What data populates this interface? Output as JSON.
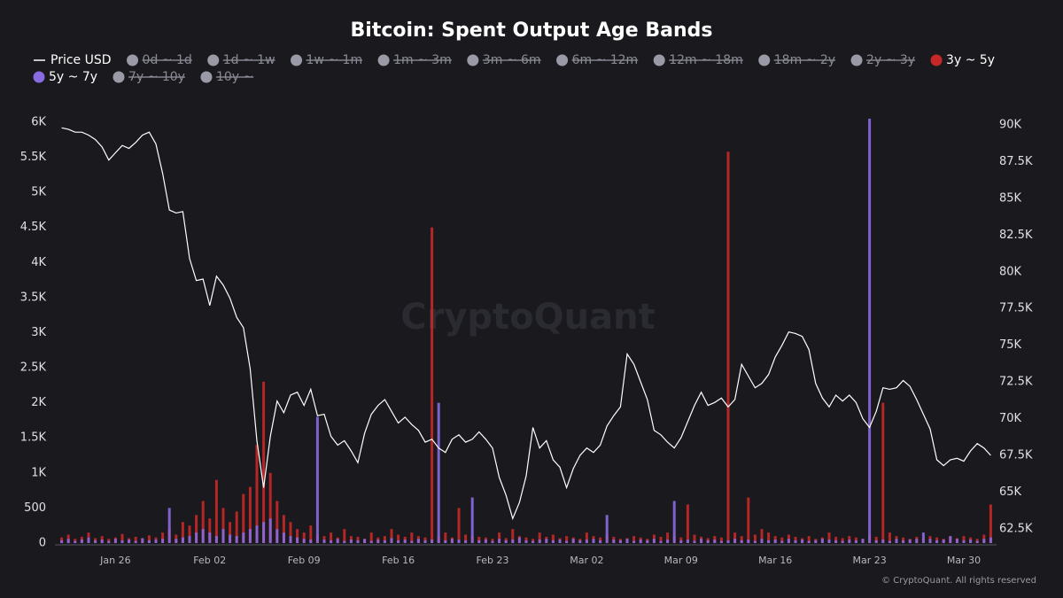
{
  "chart_data": {
    "type": "combo",
    "title": "Bitcoin: Spent Output Age Bands",
    "watermark": "CryptoQuant",
    "footer": "© CryptoQuant. All rights reserved",
    "categories": [
      null,
      null,
      null,
      null,
      null,
      null,
      null,
      null,
      "Jan 26",
      null,
      null,
      null,
      null,
      null,
      null,
      null,
      null,
      null,
      null,
      null,
      null,
      null,
      "Feb 02",
      null,
      null,
      null,
      null,
      null,
      null,
      null,
      null,
      null,
      null,
      null,
      null,
      null,
      "Feb 09",
      null,
      null,
      null,
      null,
      null,
      null,
      null,
      null,
      null,
      null,
      null,
      null,
      null,
      "Feb 16",
      null,
      null,
      null,
      null,
      null,
      null,
      null,
      null,
      null,
      null,
      null,
      null,
      null,
      "Feb 23",
      null,
      null,
      null,
      null,
      null,
      null,
      null,
      null,
      null,
      null,
      null,
      null,
      null,
      "Mar 02",
      null,
      null,
      null,
      null,
      null,
      null,
      null,
      null,
      null,
      null,
      null,
      null,
      null,
      "Mar 09",
      null,
      null,
      null,
      null,
      null,
      null,
      null,
      null,
      null,
      null,
      null,
      null,
      null,
      "Mar 16",
      null,
      null,
      null,
      null,
      null,
      null,
      null,
      null,
      null,
      null,
      null,
      null,
      null,
      "Mar 23",
      null,
      null,
      null,
      null,
      null,
      null,
      null,
      null,
      null,
      null,
      null,
      null,
      null,
      "Mar 30",
      null,
      null,
      null,
      null
    ],
    "series": [
      {
        "name": "Price USD",
        "type": "line",
        "axis": "y2",
        "color": "#ffffff",
        "visible": true,
        "values": [
          89800,
          89700,
          89500,
          89500,
          89300,
          89000,
          88500,
          87600,
          88100,
          88600,
          88400,
          88800,
          89300,
          89500,
          88700,
          86700,
          84200,
          84000,
          84100,
          80900,
          79400,
          79500,
          77700,
          79700,
          79100,
          78200,
          76900,
          76200,
          73400,
          68500,
          65300,
          68800,
          71200,
          70400,
          71600,
          71800,
          70900,
          72000,
          70200,
          70300,
          68800,
          68200,
          68500,
          67800,
          67000,
          69000,
          70300,
          70900,
          71300,
          70500,
          69700,
          70100,
          69600,
          69200,
          68400,
          68600,
          68000,
          67700,
          68600,
          68900,
          68400,
          68600,
          69100,
          68600,
          68000,
          66000,
          64800,
          63200,
          64300,
          66100,
          69400,
          68000,
          68500,
          67200,
          66700,
          65300,
          66600,
          67500,
          68000,
          67700,
          68200,
          69500,
          70200,
          70800,
          74400,
          73700,
          72500,
          71300,
          69200,
          68900,
          68400,
          68000,
          68700,
          69800,
          70900,
          71800,
          70900,
          71100,
          71400,
          70800,
          71300,
          73700,
          72900,
          72100,
          72400,
          73000,
          74200,
          75000,
          75900,
          75800,
          75600,
          74700,
          72400,
          71400,
          70800,
          71600,
          71200,
          71600,
          71100,
          70000,
          69400,
          70500,
          72100,
          72000,
          72100,
          72600,
          72200,
          71300,
          70300,
          69300,
          67200,
          66800,
          67200,
          67300,
          67100,
          67800,
          68300,
          68000,
          67500
        ]
      },
      {
        "name": "0d ~ 1d",
        "type": "bar",
        "color": "#9a9aa6",
        "visible": false
      },
      {
        "name": "1d ~ 1w",
        "type": "bar",
        "color": "#9a9aa6",
        "visible": false
      },
      {
        "name": "1w ~ 1m",
        "type": "bar",
        "color": "#9a9aa6",
        "visible": false
      },
      {
        "name": "1m ~ 3m",
        "type": "bar",
        "color": "#9a9aa6",
        "visible": false
      },
      {
        "name": "3m ~ 6m",
        "type": "bar",
        "color": "#9a9aa6",
        "visible": false
      },
      {
        "name": "6m ~ 12m",
        "type": "bar",
        "color": "#9a9aa6",
        "visible": false
      },
      {
        "name": "12m ~ 18m",
        "type": "bar",
        "color": "#9a9aa6",
        "visible": false
      },
      {
        "name": "18m ~ 2y",
        "type": "bar",
        "color": "#9a9aa6",
        "visible": false
      },
      {
        "name": "2y ~ 3y",
        "type": "bar",
        "color": "#9a9aa6",
        "visible": false
      },
      {
        "name": "3y ~ 5y",
        "type": "bar",
        "color": "#c62828",
        "visible": true,
        "values": [
          80,
          120,
          60,
          90,
          150,
          70,
          100,
          60,
          80,
          130,
          70,
          90,
          60,
          110,
          80,
          150,
          200,
          120,
          300,
          250,
          400,
          600,
          350,
          900,
          500,
          300,
          450,
          700,
          800,
          1400,
          2300,
          1000,
          600,
          400,
          300,
          200,
          150,
          250,
          120,
          100,
          150,
          80,
          200,
          100,
          90,
          60,
          150,
          80,
          100,
          200,
          120,
          90,
          150,
          100,
          80,
          4500,
          100,
          150,
          80,
          500,
          120,
          100,
          90,
          80,
          60,
          150,
          70,
          200,
          100,
          80,
          60,
          150,
          90,
          120,
          70,
          100,
          80,
          60,
          150,
          100,
          80,
          120,
          90,
          60,
          70,
          100,
          80,
          60,
          120,
          90,
          150,
          100,
          80,
          550,
          120,
          90,
          70,
          100,
          80,
          5580,
          150,
          100,
          650,
          120,
          200,
          150,
          100,
          80,
          120,
          90,
          70,
          100,
          60,
          80,
          150,
          90,
          70,
          100,
          80,
          60,
          120,
          90,
          2000,
          150,
          100,
          80,
          60,
          90,
          70,
          100,
          80,
          60,
          90,
          70,
          100,
          80,
          60,
          120,
          550
        ]
      },
      {
        "name": "5y ~ 7y",
        "type": "bar",
        "color": "#8a6ae0",
        "visible": true,
        "values": [
          40,
          60,
          30,
          50,
          80,
          40,
          50,
          30,
          60,
          40,
          50,
          30,
          70,
          40,
          50,
          60,
          500,
          60,
          80,
          100,
          150,
          200,
          150,
          100,
          200,
          120,
          100,
          150,
          200,
          250,
          300,
          350,
          200,
          150,
          100,
          80,
          60,
          50,
          1800,
          50,
          40,
          60,
          30,
          50,
          40,
          60,
          30,
          50,
          40,
          70,
          40,
          50,
          30,
          60,
          40,
          50,
          2000,
          40,
          60,
          50,
          40,
          650,
          40,
          50,
          30,
          60,
          40,
          50,
          80,
          40,
          30,
          50,
          60,
          40,
          50,
          30,
          60,
          40,
          50,
          60,
          40,
          400,
          50,
          40,
          60,
          30,
          50,
          40,
          60,
          30,
          50,
          600,
          40,
          50,
          30,
          60,
          40,
          50,
          30,
          40,
          60,
          40,
          50,
          30,
          60,
          40,
          50,
          30,
          60,
          40,
          50,
          30,
          40,
          60,
          50,
          40,
          30,
          50,
          40,
          60,
          6050,
          40,
          50,
          30,
          60,
          40,
          50,
          60,
          150,
          60,
          40,
          50,
          100,
          60,
          40,
          50,
          30,
          60,
          80
        ]
      },
      {
        "name": "7y ~ 10y",
        "type": "bar",
        "color": "#9a9aa6",
        "visible": false
      },
      {
        "name": "10y ~",
        "type": "bar",
        "color": "#9a9aa6",
        "visible": false
      }
    ],
    "ylim": [
      0,
      6100
    ],
    "yticks": [
      0,
      500,
      {
        "value": 1000,
        "label": "1K"
      },
      {
        "value": 1500,
        "label": "1.5K"
      },
      {
        "value": 2000,
        "label": "2K"
      },
      {
        "value": 2500,
        "label": "2.5K"
      },
      {
        "value": 3000,
        "label": "3K"
      },
      {
        "value": 3500,
        "label": "3.5K"
      },
      {
        "value": 4000,
        "label": "4K"
      },
      {
        "value": 4500,
        "label": "4.5K"
      },
      {
        "value": 5000,
        "label": "5K"
      },
      {
        "value": 5500,
        "label": "5.5K"
      },
      {
        "value": 6000,
        "label": "6K"
      }
    ],
    "y2lim": [
      61530,
      90660
    ],
    "y2ticks": [
      {
        "value": 62500,
        "label": "62.5K"
      },
      {
        "value": 65000,
        "label": "65K"
      },
      {
        "value": 67500,
        "label": "67.5K"
      },
      {
        "value": 70000,
        "label": "70K"
      },
      {
        "value": 72500,
        "label": "72.5K"
      },
      {
        "value": 75000,
        "label": "75K"
      },
      {
        "value": 77500,
        "label": "77.5K"
      },
      {
        "value": 80000,
        "label": "80K"
      },
      {
        "value": 82500,
        "label": "82.5K"
      },
      {
        "value": 85000,
        "label": "85K"
      },
      {
        "value": 87500,
        "label": "87.5K"
      },
      {
        "value": 90000,
        "label": "90K"
      }
    ],
    "grid": false,
    "legend": "top"
  }
}
